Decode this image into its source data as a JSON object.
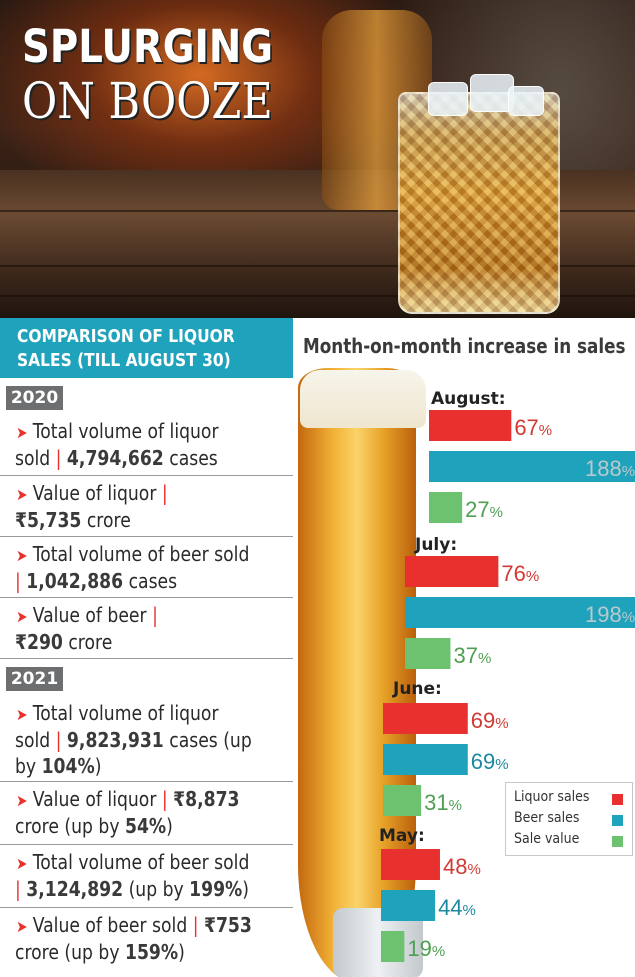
{
  "banner": {
    "title_line1": "SPLURGING",
    "title_line2": "ON BOOZE"
  },
  "comparison": {
    "heading_line1": "COMPARISON OF LIQUOR",
    "heading_line2": "SALES (TILL AUGUST 30)",
    "years": [
      {
        "year": "2020",
        "items": [
          {
            "label1": "Total volume of liquor",
            "label2_prefix": "sold",
            "value": "4,794,662",
            "suffix": "cases"
          },
          {
            "label1": "Value of liquor",
            "value_prefix": "₹",
            "value": "5,735",
            "suffix": "crore"
          },
          {
            "label1": "Total volume of beer sold",
            "value": "1,042,886",
            "suffix": "cases"
          },
          {
            "label1": "Value of beer",
            "value_prefix": "₹",
            "value": "290",
            "suffix": "crore"
          }
        ]
      },
      {
        "year": "2021",
        "items": [
          {
            "label1": "Total volume of liquor",
            "label2_prefix": "sold",
            "value": "9,823,931",
            "suffix": "cases (up",
            "label3_prefix": "by",
            "label3_value": "104%",
            "label3_suffix": ")"
          },
          {
            "label1": "Value of liquor",
            "value_prefix": "₹",
            "value": "8,873",
            "label2_text": "crore (up by",
            "label2_value": "54%",
            "label2_suffix": ")"
          },
          {
            "label1": "Total volume of beer sold",
            "value": "3,124,892",
            "suffix": "(up by",
            "suffix_value": "199%",
            "suffix_end": ")"
          },
          {
            "label1": "Value of beer sold",
            "value_prefix": "₹",
            "value": "753",
            "label2_text": "crore (up by",
            "label2_value": "159%",
            "label2_suffix": ")"
          }
        ]
      }
    ]
  },
  "chart_data": {
    "type": "bar",
    "title": "Month-on-month increase in sales",
    "orientation": "horizontal",
    "unit": "%",
    "categories": [
      "August:",
      "July:",
      "June:",
      "May:"
    ],
    "series": [
      {
        "name": "Liquor sales",
        "color": "#e8312f",
        "values": [
          67,
          76,
          69,
          48
        ]
      },
      {
        "name": "Beer sales",
        "color": "#1fa3bc",
        "values": [
          188,
          198,
          69,
          44
        ]
      },
      {
        "name": "Sale value",
        "color": "#6cc26f",
        "values": [
          27,
          37,
          31,
          19
        ]
      }
    ],
    "legend_position": "right, between June and May groups",
    "grid": false
  },
  "colors": {
    "accent_teal": "#1fa3bc",
    "accent_red": "#e8312f",
    "accent_green": "#6cc26f",
    "badge_grey": "#6d6e70"
  }
}
